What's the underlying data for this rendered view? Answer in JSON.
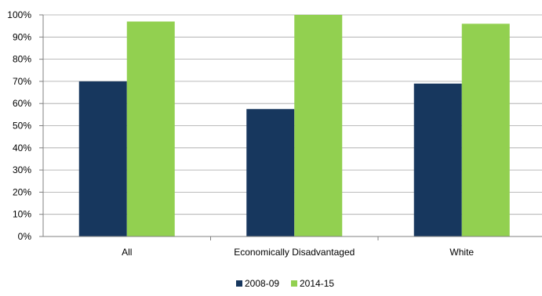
{
  "chart_data": {
    "type": "bar",
    "title": "",
    "xlabel": "",
    "ylabel": "",
    "categories": [
      "All",
      "Economically Disadvantaged",
      "White"
    ],
    "series": [
      {
        "name": "2008-09",
        "color": "#17375e",
        "values": [
          70,
          57.5,
          69
        ]
      },
      {
        "name": "2014-15",
        "color": "#92d050",
        "values": [
          97,
          100,
          96
        ]
      }
    ],
    "ylim": [
      0,
      100
    ],
    "yticks": [
      "0%",
      "10%",
      "20%",
      "30%",
      "40%",
      "50%",
      "60%",
      "70%",
      "80%",
      "90%",
      "100%"
    ],
    "grid": true,
    "legend": "bottom"
  }
}
